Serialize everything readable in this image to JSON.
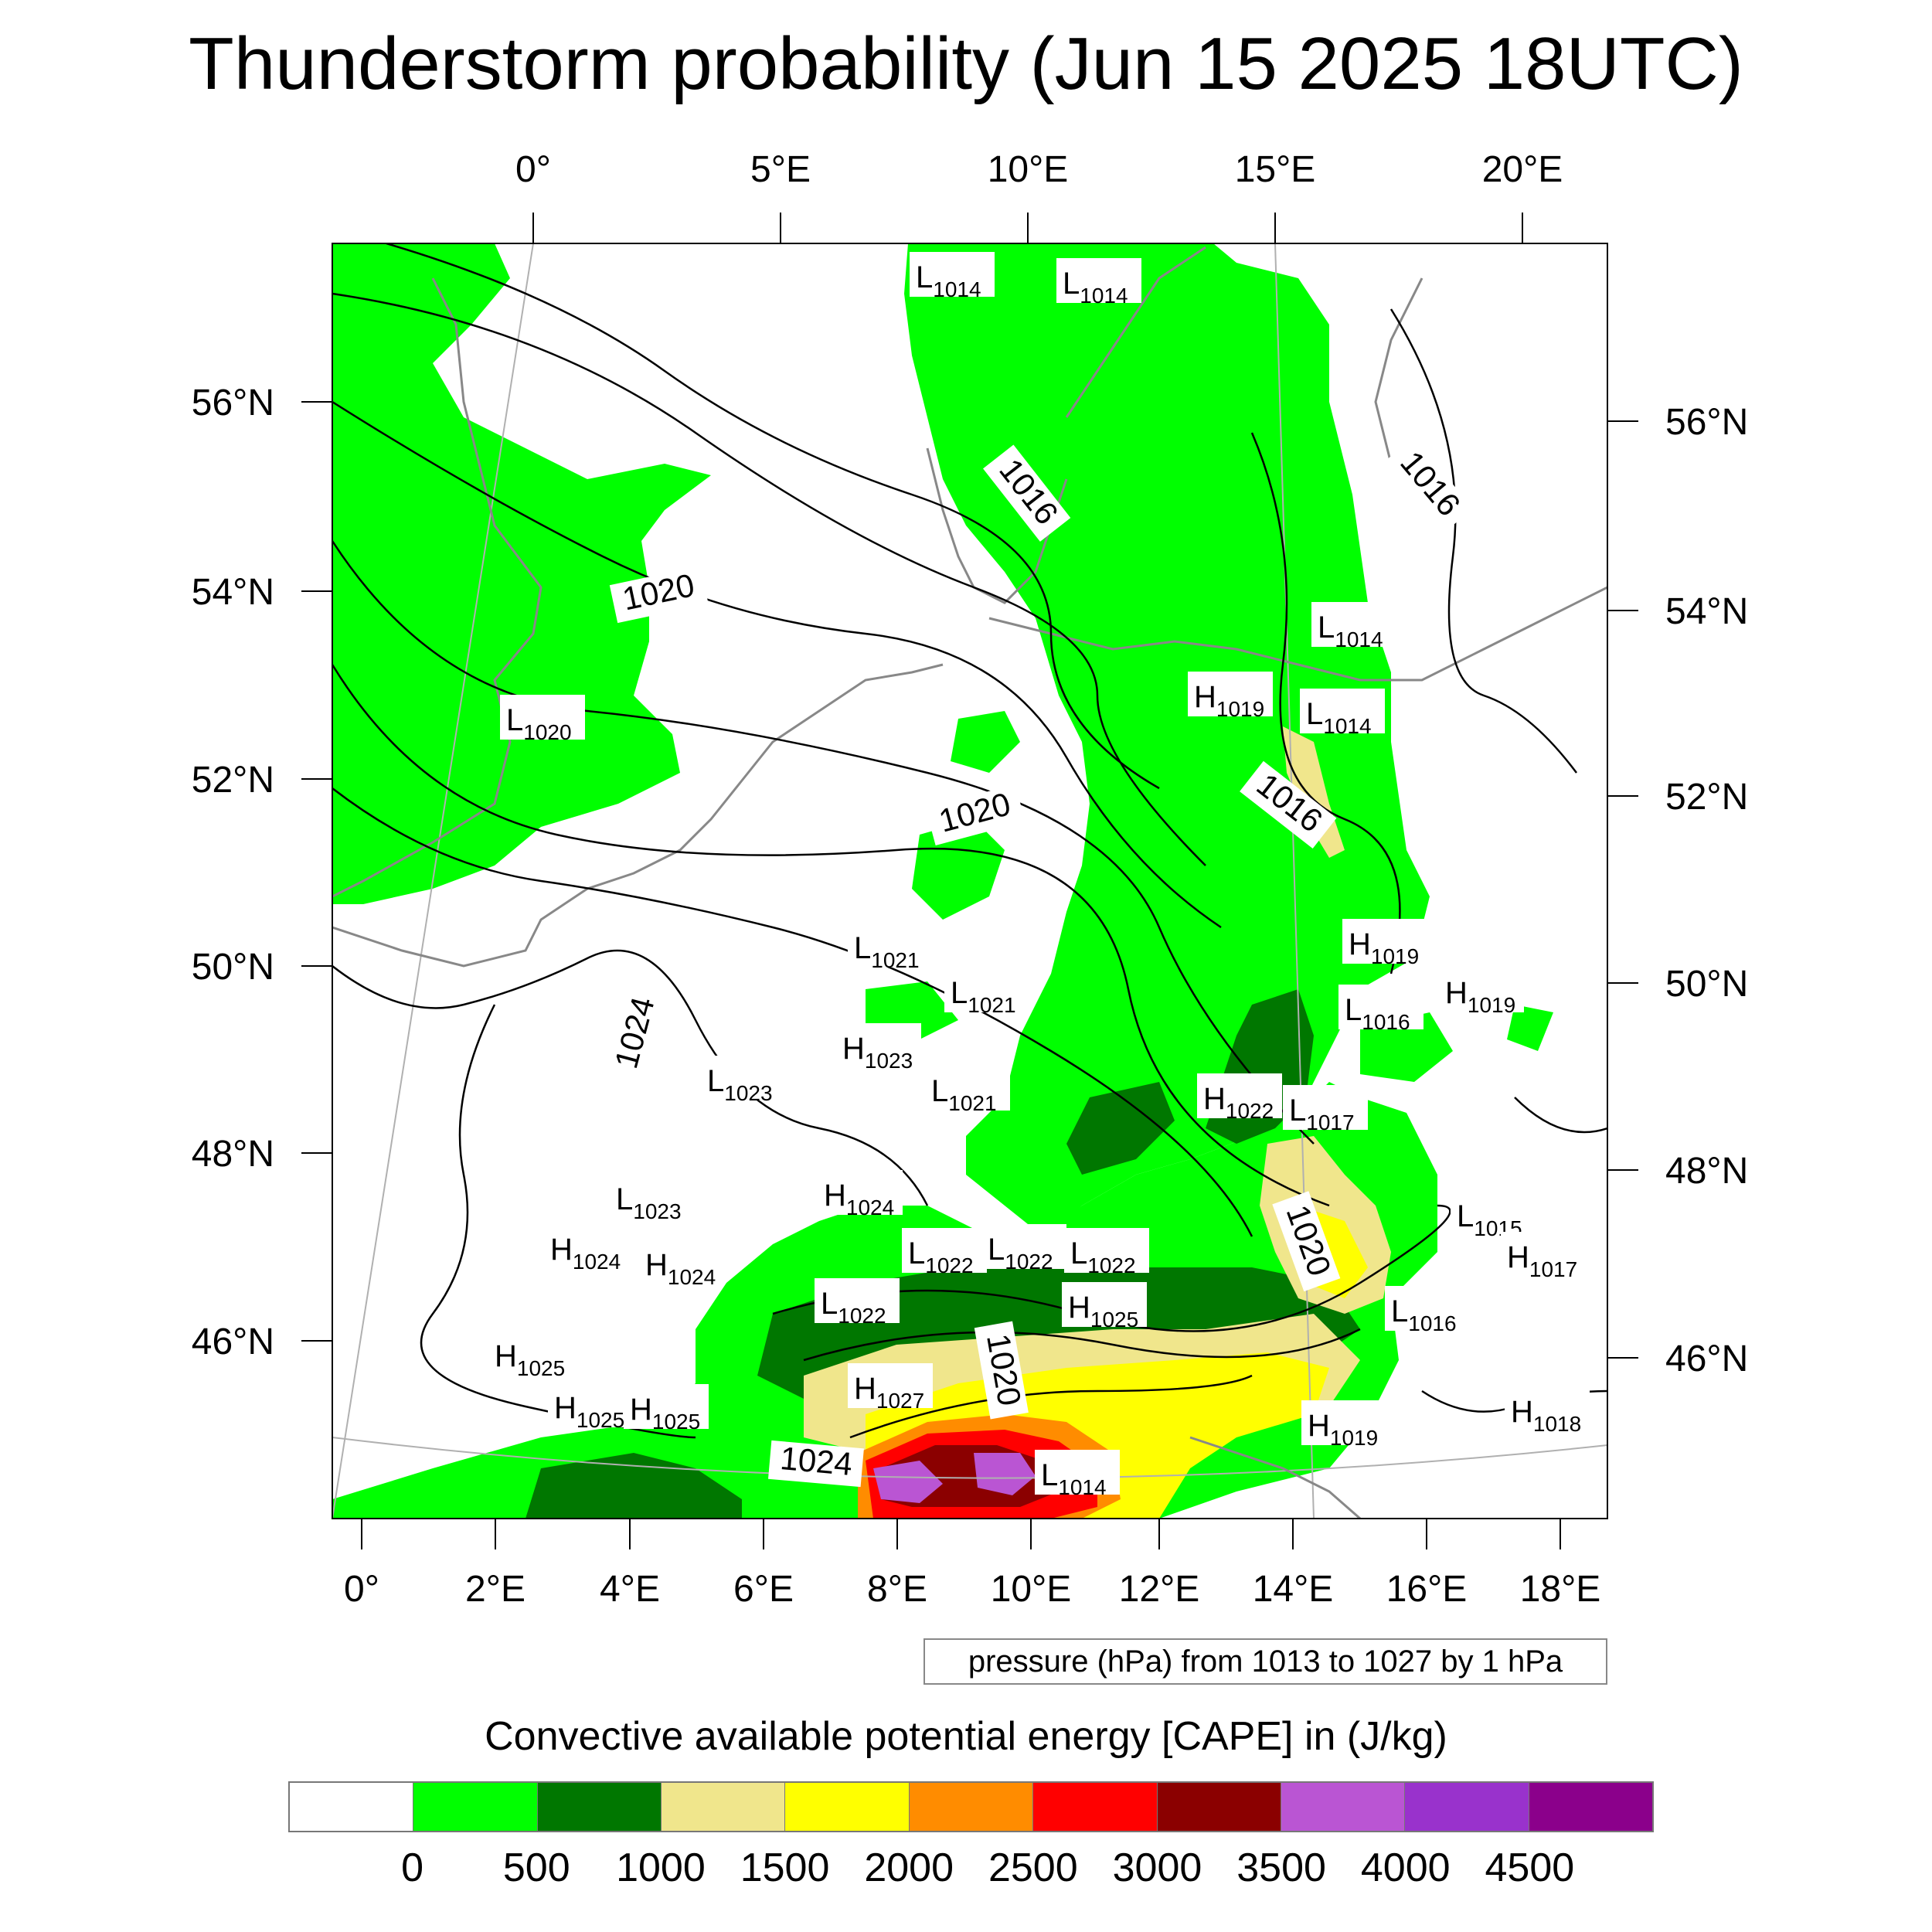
{
  "title": "Thunderstorm probability (Jun 15 2025 18UTC)",
  "map": {
    "top_lon_ticks": [
      "0°",
      "5°E",
      "10°E",
      "15°E",
      "20°E"
    ],
    "left_lat_ticks": [
      "56°N",
      "54°N",
      "52°N",
      "50°N",
      "48°N",
      "46°N"
    ],
    "right_lat_ticks": [
      "56°N",
      "54°N",
      "52°N",
      "50°N",
      "48°N",
      "46°N"
    ],
    "bottom_lon_ticks": [
      "0°",
      "2°E",
      "4°E",
      "6°E",
      "8°E",
      "10°E",
      "12°E",
      "14°E",
      "16°E",
      "18°E"
    ],
    "isobar_labels": [
      "1020",
      "1016",
      "1016",
      "1020",
      "1016",
      "1024",
      "1020",
      "1020",
      "1024"
    ],
    "pressure_centers": [
      {
        "type": "L",
        "value": "1014"
      },
      {
        "type": "L",
        "value": "1014"
      },
      {
        "type": "L",
        "value": "1020"
      },
      {
        "type": "L",
        "value": "1014"
      },
      {
        "type": "H",
        "value": "1019"
      },
      {
        "type": "L",
        "value": "1014"
      },
      {
        "type": "H",
        "value": "1019"
      },
      {
        "type": "L",
        "value": "1016"
      },
      {
        "type": "H",
        "value": "1019"
      },
      {
        "type": "L",
        "value": "1021"
      },
      {
        "type": "L",
        "value": "1021"
      },
      {
        "type": "H",
        "value": "1023"
      },
      {
        "type": "L",
        "value": "1021"
      },
      {
        "type": "L",
        "value": "1023"
      },
      {
        "type": "H",
        "value": "1022"
      },
      {
        "type": "L",
        "value": "1017"
      },
      {
        "type": "L",
        "value": "1023"
      },
      {
        "type": "H",
        "value": "1024"
      },
      {
        "type": "H",
        "value": "1024"
      },
      {
        "type": "H",
        "value": "1024"
      },
      {
        "type": "L",
        "value": "1022"
      },
      {
        "type": "L",
        "value": "1022"
      },
      {
        "type": "L",
        "value": "1022"
      },
      {
        "type": "L",
        "value": "1015"
      },
      {
        "type": "H",
        "value": "1017"
      },
      {
        "type": "L",
        "value": "1022"
      },
      {
        "type": "H",
        "value": "1025"
      },
      {
        "type": "L",
        "value": "1016"
      },
      {
        "type": "H",
        "value": "1025"
      },
      {
        "type": "H",
        "value": "1027"
      },
      {
        "type": "H",
        "value": "1025"
      },
      {
        "type": "H",
        "value": "1025"
      },
      {
        "type": "H",
        "value": "1019"
      },
      {
        "type": "H",
        "value": "1018"
      },
      {
        "type": "L",
        "value": "1014"
      }
    ]
  },
  "pressure_note": "pressure (hPa) from 1013 to 1027 by 1 hPa",
  "colorbar": {
    "title": "Convective available potential energy [CAPE] in (J/kg)",
    "colors": [
      "#ffffff",
      "#00ff00",
      "#007700",
      "#f0e68c",
      "#ffff00",
      "#ff8c00",
      "#ff0000",
      "#8b0000",
      "#ba55d3",
      "#9932cc",
      "#8b008b"
    ],
    "labels": [
      "0",
      "500",
      "1000",
      "1500",
      "2000",
      "2500",
      "3000",
      "3500",
      "4000",
      "4500"
    ]
  },
  "colors": {
    "cape_low": "#00ff00",
    "cape_mid": "#007700",
    "coastline": "#888888",
    "isobar": "#000000"
  }
}
